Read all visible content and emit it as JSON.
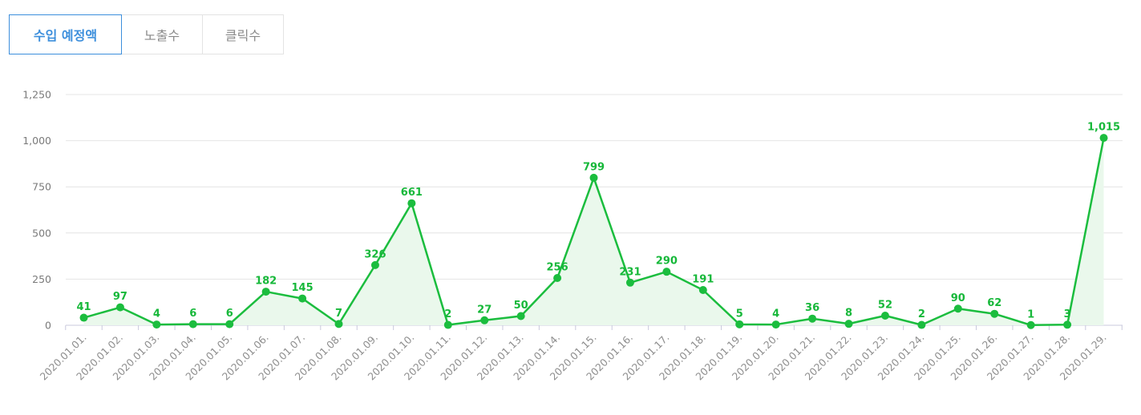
{
  "tabs": [
    {
      "label": "수입 예정액",
      "active": true
    },
    {
      "label": "노출수",
      "active": false
    },
    {
      "label": "클릭수",
      "active": false
    }
  ],
  "colors": {
    "line": "#1bbd3e",
    "fill": "#eaf8ec",
    "tab_active": "#3d8fdc",
    "grid": "#e4e4e4"
  },
  "chart_data": {
    "type": "line",
    "title": "",
    "xlabel": "",
    "ylabel": "",
    "ylim": [
      0,
      1250
    ],
    "yticks": [
      0,
      250,
      500,
      750,
      1000,
      1250
    ],
    "ytick_labels": [
      "0",
      "250",
      "500",
      "750",
      "1,000",
      "1,250"
    ],
    "area_fill": true,
    "grid": "horizontal",
    "categories": [
      "2020.01.01.",
      "2020.01.02.",
      "2020.01.03.",
      "2020.01.04.",
      "2020.01.05.",
      "2020.01.06.",
      "2020.01.07.",
      "2020.01.08.",
      "2020.01.09.",
      "2020.01.10.",
      "2020.01.11.",
      "2020.01.12.",
      "2020.01.13.",
      "2020.01.14.",
      "2020.01.15.",
      "2020.01.16.",
      "2020.01.17.",
      "2020.01.18.",
      "2020.01.19.",
      "2020.01.20.",
      "2020.01.21.",
      "2020.01.22.",
      "2020.01.23.",
      "2020.01.24.",
      "2020.01.25.",
      "2020.01.26.",
      "2020.01.27.",
      "2020.01.28.",
      "2020.01.29."
    ],
    "values": [
      41,
      97,
      4,
      6,
      6,
      182,
      145,
      7,
      326,
      661,
      2,
      27,
      50,
      256,
      799,
      231,
      290,
      191,
      5,
      4,
      36,
      8,
      52,
      2,
      90,
      62,
      1,
      3,
      1015
    ],
    "data_labels": [
      "41",
      "97",
      "4",
      "6",
      "6",
      "182",
      "145",
      "7",
      "326",
      "661",
      "2",
      "27",
      "50",
      "256",
      "799",
      "231",
      "290",
      "191",
      "5",
      "4",
      "36",
      "8",
      "52",
      "2",
      "90",
      "62",
      "1",
      "3",
      "1,015"
    ]
  }
}
